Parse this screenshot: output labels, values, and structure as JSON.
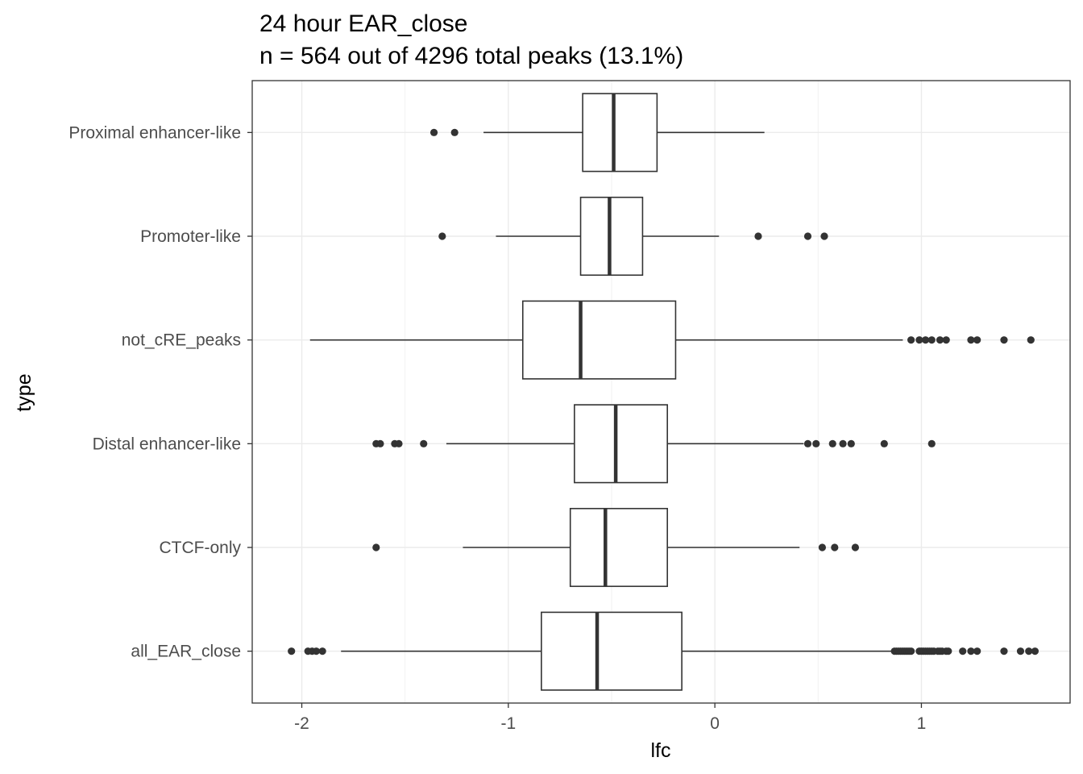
{
  "title": "24 hour EAR_close",
  "subtitle": "n = 564 out of 4296 total peaks (13.1%)",
  "chart_data": {
    "type": "boxplot",
    "orientation": "horizontal",
    "xlabel": "lfc",
    "ylabel": "type",
    "xlim": [
      -2.24,
      1.72
    ],
    "xticks": [
      -2,
      -1,
      0,
      1
    ],
    "xtick_labels": [
      "-2",
      "-1",
      "0",
      "1"
    ],
    "grid": true,
    "categories": [
      "Proximal enhancer-like",
      "Promoter-like",
      "not_cRE_peaks",
      "Distal enhancer-like",
      "CTCF-only",
      "all_EAR_close"
    ],
    "boxes": [
      {
        "category": "Proximal enhancer-like",
        "whisker_low": -1.12,
        "q1": -0.64,
        "median": -0.49,
        "q3": -0.28,
        "whisker_high": 0.24,
        "outliers": [
          -1.36,
          -1.26
        ]
      },
      {
        "category": "Promoter-like",
        "whisker_low": -1.06,
        "q1": -0.65,
        "median": -0.51,
        "q3": -0.35,
        "whisker_high": 0.02,
        "outliers": [
          -1.32,
          0.21,
          0.45,
          0.53
        ]
      },
      {
        "category": "not_cRE_peaks",
        "whisker_low": -1.96,
        "q1": -0.93,
        "median": -0.65,
        "q3": -0.19,
        "whisker_high": 0.91,
        "outliers": [
          0.95,
          0.99,
          1.02,
          1.05,
          1.09,
          1.12,
          1.24,
          1.27,
          1.4,
          1.53
        ]
      },
      {
        "category": "Distal enhancer-like",
        "whisker_low": -1.3,
        "q1": -0.68,
        "median": -0.48,
        "q3": -0.23,
        "whisker_high": 0.43,
        "outliers": [
          -1.64,
          -1.62,
          -1.55,
          -1.53,
          -1.41,
          0.45,
          0.49,
          0.57,
          0.62,
          0.66,
          0.82,
          1.05
        ]
      },
      {
        "category": "CTCF-only",
        "whisker_low": -1.22,
        "q1": -0.7,
        "median": -0.53,
        "q3": -0.23,
        "whisker_high": 0.41,
        "outliers": [
          -1.64,
          0.52,
          0.58,
          0.68
        ]
      },
      {
        "category": "all_EAR_close",
        "whisker_low": -1.81,
        "q1": -0.84,
        "median": -0.57,
        "q3": -0.16,
        "whisker_high": 0.86,
        "outliers": [
          -2.05,
          -1.97,
          -1.95,
          -1.93,
          -1.9,
          0.87,
          0.88,
          0.89,
          0.9,
          0.91,
          0.92,
          0.93,
          0.94,
          0.95,
          0.99,
          1.0,
          1.01,
          1.02,
          1.03,
          1.04,
          1.05,
          1.06,
          1.08,
          1.09,
          1.1,
          1.12,
          1.13,
          1.2,
          1.24,
          1.27,
          1.4,
          1.48,
          1.52,
          1.55
        ]
      }
    ]
  }
}
